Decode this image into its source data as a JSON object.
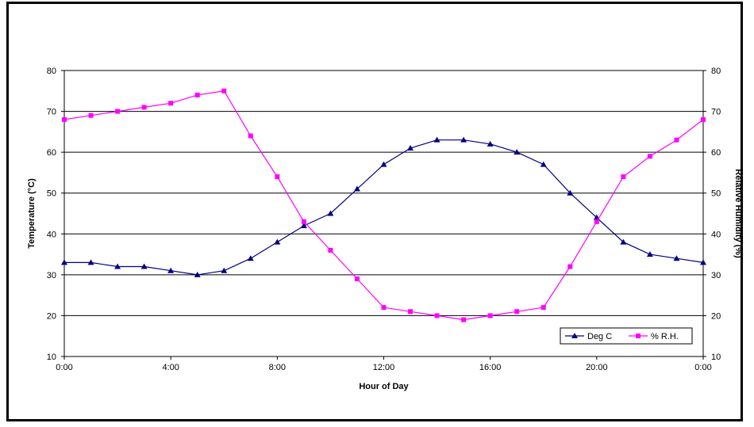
{
  "chart_data": {
    "type": "line",
    "title": "",
    "xlabel": "Hour of Day",
    "ylabel": "Temperature (°C)",
    "y2label": "Relative Humidity (%)",
    "x": [
      0,
      1,
      2,
      3,
      4,
      5,
      6,
      7,
      8,
      9,
      10,
      11,
      12,
      13,
      14,
      15,
      16,
      17,
      18,
      19,
      20,
      21,
      22,
      23,
      24
    ],
    "xlim": [
      0,
      24
    ],
    "xticks": [
      {
        "value": 0,
        "label": "0:00"
      },
      {
        "value": 4,
        "label": "4:00"
      },
      {
        "value": 8,
        "label": "8:00"
      },
      {
        "value": 12,
        "label": "12:00"
      },
      {
        "value": 16,
        "label": "16:00"
      },
      {
        "value": 20,
        "label": "20:00"
      },
      {
        "value": 24,
        "label": "0:00"
      }
    ],
    "ylim": [
      10,
      80
    ],
    "y2lim": [
      10,
      80
    ],
    "yticks": [
      10,
      20,
      30,
      40,
      50,
      60,
      70,
      80
    ],
    "grid": true,
    "legend": "bottom-right",
    "series": [
      {
        "name": "Deg C",
        "axis": "left",
        "color": "#000080",
        "marker": "triangle",
        "values": [
          33,
          33,
          32,
          32,
          31,
          30,
          31,
          34,
          38,
          42,
          45,
          51,
          57,
          61,
          63,
          63,
          62,
          60,
          57,
          50,
          44,
          38,
          35,
          34,
          33
        ]
      },
      {
        "name": "% R.H.",
        "axis": "right",
        "color": "#ff00ff",
        "marker": "square",
        "values": [
          68,
          69,
          70,
          71,
          72,
          74,
          75,
          64,
          54,
          43,
          36,
          29,
          22,
          21,
          20,
          19,
          20,
          21,
          22,
          32,
          43,
          54,
          59,
          63,
          68
        ]
      }
    ]
  }
}
